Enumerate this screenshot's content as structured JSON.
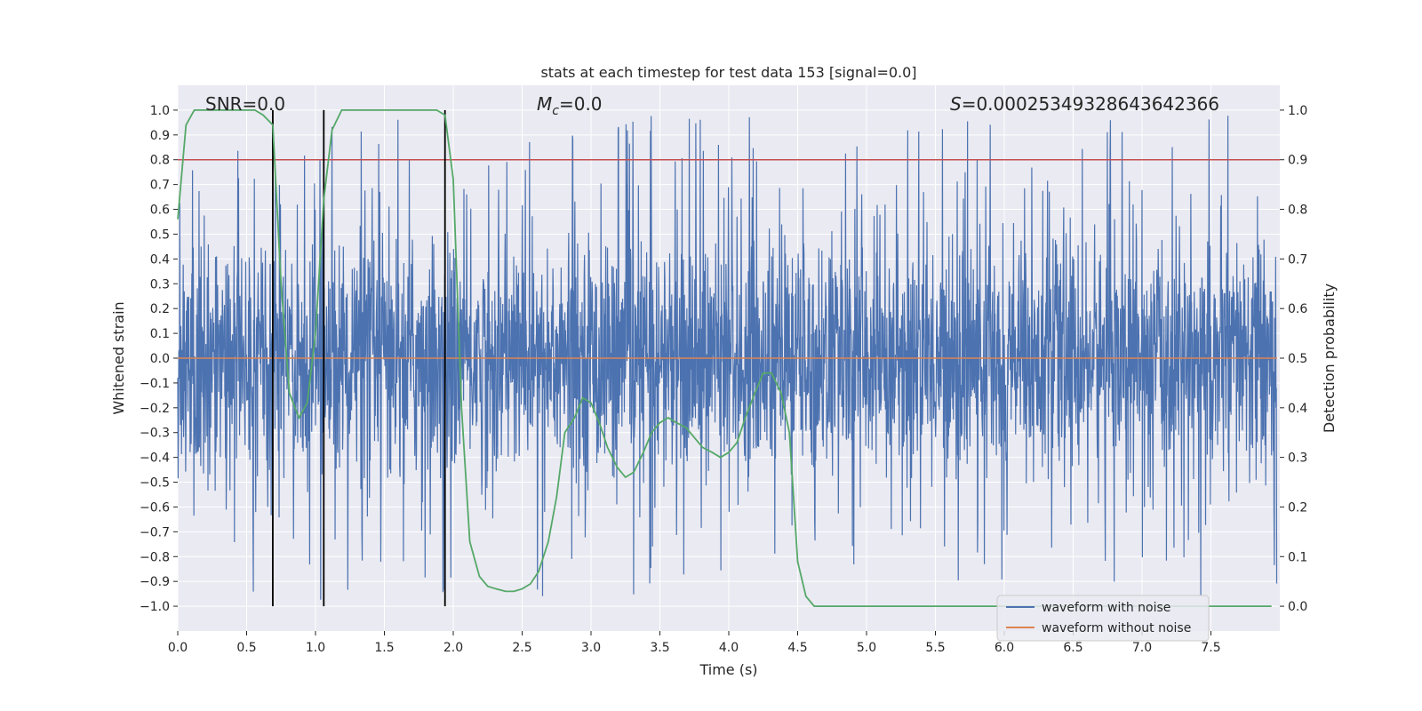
{
  "chart_data": {
    "type": "line",
    "title": "stats at each timestep for test data 153 [signal=0.0]",
    "xlabel": "Time (s)",
    "ylabel": "Whitened strain",
    "ylabel_right": "Detection probability",
    "xlim": [
      0.0,
      8.0
    ],
    "ylim": [
      -1.1,
      1.1
    ],
    "ylim_right": [
      -0.05,
      1.05
    ],
    "x_ticks": [
      "0.0",
      "0.5",
      "1.0",
      "1.5",
      "2.0",
      "2.5",
      "3.0",
      "3.5",
      "4.0",
      "4.5",
      "5.0",
      "5.5",
      "6.0",
      "6.5",
      "7.0",
      "7.5"
    ],
    "y_ticks": [
      "1.0",
      "0.9",
      "0.8",
      "0.7",
      "0.6",
      "0.5",
      "0.4",
      "0.3",
      "0.2",
      "0.1",
      "0.0",
      "−0.1",
      "−0.2",
      "−0.3",
      "−0.4",
      "−0.5",
      "−0.6",
      "−0.7",
      "−0.8",
      "−0.9",
      "−1.0"
    ],
    "y_ticks_right": [
      "1.0",
      "0.9",
      "0.8",
      "0.7",
      "0.6",
      "0.5",
      "0.4",
      "0.3",
      "0.2",
      "0.1",
      "0.0"
    ],
    "grid": true,
    "legend_position": "lower right",
    "annotations": {
      "snr": "SNR=0.0",
      "mc_symbol": "M",
      "mc_sub": "c",
      "mc_value": "=0.0",
      "s_symbol": "S",
      "s_value": "=0.00025349328643642366"
    },
    "series": [
      {
        "name": "waveform with noise",
        "color": "#4c72b0",
        "description_values": "noise-like strain, amplitude roughly within ±0.6 with spikes up to ±1.0"
      },
      {
        "name": "waveform without noise",
        "color": "#dd8452",
        "values_constant": 0.0
      }
    ],
    "threshold_line": {
      "y_right": 0.9,
      "color": "#c44e52"
    },
    "vertical_lines_x": [
      0.69,
      1.06,
      1.94
    ],
    "detection_probability": {
      "color": "#55a868",
      "x": [
        0.0,
        0.06,
        0.12,
        0.19,
        0.25,
        0.31,
        0.38,
        0.44,
        0.5,
        0.56,
        0.62,
        0.69,
        0.75,
        0.81,
        0.88,
        0.94,
        1.0,
        1.06,
        1.12,
        1.19,
        1.25,
        1.31,
        1.38,
        1.44,
        1.5,
        1.56,
        1.62,
        1.69,
        1.75,
        1.81,
        1.88,
        1.94,
        2.0,
        2.06,
        2.12,
        2.19,
        2.25,
        2.31,
        2.38,
        2.44,
        2.5,
        2.56,
        2.62,
        2.69,
        2.75,
        2.81,
        2.88,
        2.94,
        3.0,
        3.06,
        3.12,
        3.19,
        3.25,
        3.31,
        3.38,
        3.44,
        3.5,
        3.56,
        3.62,
        3.69,
        3.75,
        3.81,
        3.88,
        3.94,
        4.0,
        4.06,
        4.12,
        4.19,
        4.25,
        4.31,
        4.38,
        4.44,
        4.5,
        4.56,
        4.62,
        4.69,
        4.75,
        5.0,
        5.5,
        6.0,
        6.5,
        7.0,
        7.5,
        7.94
      ],
      "y": [
        0.78,
        0.97,
        1.0,
        1.0,
        1.0,
        1.0,
        1.0,
        1.0,
        1.0,
        1.0,
        0.99,
        0.97,
        0.65,
        0.43,
        0.38,
        0.41,
        0.55,
        0.82,
        0.96,
        1.0,
        1.0,
        1.0,
        1.0,
        1.0,
        1.0,
        1.0,
        1.0,
        1.0,
        1.0,
        1.0,
        1.0,
        0.99,
        0.86,
        0.4,
        0.13,
        0.06,
        0.04,
        0.035,
        0.03,
        0.03,
        0.035,
        0.045,
        0.07,
        0.13,
        0.22,
        0.35,
        0.38,
        0.42,
        0.41,
        0.37,
        0.32,
        0.28,
        0.26,
        0.27,
        0.31,
        0.35,
        0.37,
        0.38,
        0.37,
        0.36,
        0.34,
        0.32,
        0.31,
        0.3,
        0.31,
        0.33,
        0.38,
        0.43,
        0.47,
        0.47,
        0.43,
        0.35,
        0.09,
        0.02,
        0.0,
        0.0,
        0.0,
        0.0,
        0.0,
        0.0,
        0.0,
        0.0,
        0.0,
        0.0
      ]
    }
  },
  "legend": {
    "items": [
      {
        "label": "waveform with noise",
        "color": "#4c72b0"
      },
      {
        "label": "waveform without noise",
        "color": "#dd8452"
      }
    ]
  }
}
